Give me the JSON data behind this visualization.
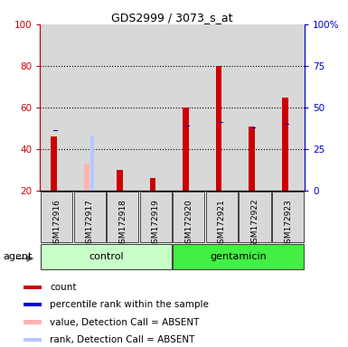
{
  "title": "GDS2999 / 3073_s_at",
  "samples": [
    "GSM172916",
    "GSM172917",
    "GSM172918",
    "GSM172919",
    "GSM172920",
    "GSM172921",
    "GSM172922",
    "GSM172923"
  ],
  "count_values": [
    46,
    0,
    30,
    26,
    60,
    80,
    51,
    65
  ],
  "rank_values": [
    36,
    0,
    31,
    30,
    39,
    41,
    38,
    40
  ],
  "absent_value": [
    0,
    33,
    0,
    0,
    0,
    0,
    0,
    0
  ],
  "absent_rank": [
    0,
    33,
    0,
    0,
    0,
    0,
    0,
    0
  ],
  "is_absent": [
    false,
    true,
    false,
    false,
    false,
    false,
    false,
    false
  ],
  "groups": [
    {
      "label": "control",
      "start": 0,
      "end": 3,
      "color": "#c8ffc8"
    },
    {
      "label": "gentamicin",
      "start": 4,
      "end": 7,
      "color": "#44ee44"
    }
  ],
  "group_label": "agent",
  "ylim_left": [
    20,
    100
  ],
  "ylim_right": [
    0,
    100
  ],
  "yticks_left": [
    20,
    40,
    60,
    80,
    100
  ],
  "ytick_labels_right": [
    "0",
    "25",
    "50",
    "75",
    "100%"
  ],
  "left_axis_color": "#cc0000",
  "right_axis_color": "#0000cc",
  "bar_color_count": "#cc0000",
  "bar_color_rank": "#0000cc",
  "bar_color_absent_value": "#ffb3b3",
  "bar_color_absent_rank": "#b3c8ff",
  "legend_items": [
    {
      "label": "count",
      "color": "#cc0000"
    },
    {
      "label": "percentile rank within the sample",
      "color": "#0000cc"
    },
    {
      "label": "value, Detection Call = ABSENT",
      "color": "#ffb3b3"
    },
    {
      "label": "rank, Detection Call = ABSENT",
      "color": "#b3c8ff"
    }
  ],
  "count_bar_width": 0.18,
  "rank_bar_width": 0.12,
  "background_color": "#d8d8d8",
  "plot_bg": "#ffffff"
}
